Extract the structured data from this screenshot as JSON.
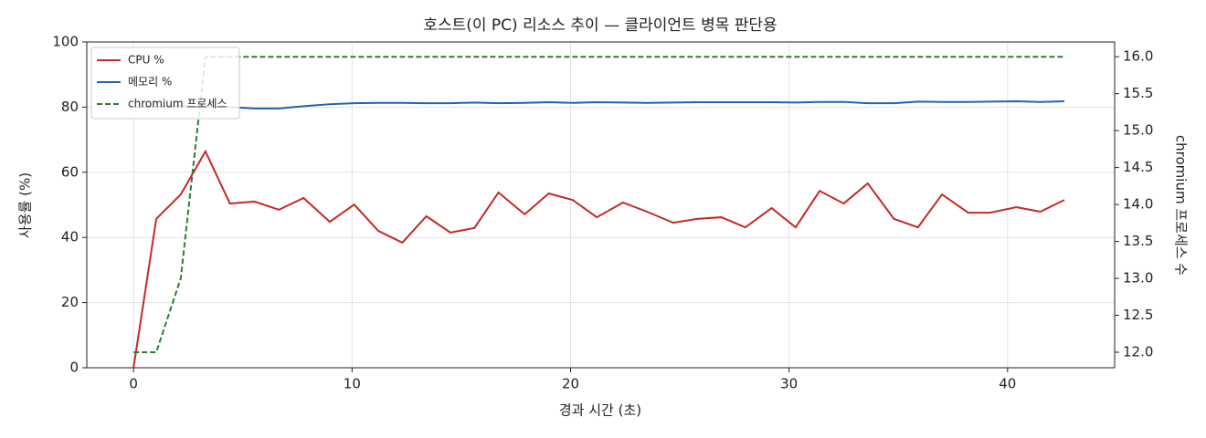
{
  "chart_data": {
    "type": "line",
    "title": "호스트(이 PC) 리소스 추이 — 클라이언트 병목 판단용",
    "x_label": "경과 시간 (초)",
    "y_label": "사용률 (%)",
    "y2_label": "chromium 프로세스 수",
    "x": [
      0,
      1.04,
      2.16,
      3.29,
      4.41,
      5.53,
      6.65,
      7.78,
      8.98,
      10.1,
      11.2,
      12.3,
      13.4,
      14.5,
      15.6,
      16.7,
      17.9,
      19.0,
      20.1,
      21.2,
      22.4,
      23.5,
      24.7,
      25.8,
      26.9,
      28.0,
      29.2,
      30.3,
      31.4,
      32.5,
      33.6,
      34.8,
      35.9,
      37.0,
      38.2,
      39.2,
      40.4,
      41.5,
      42.6
    ],
    "series": [
      {
        "name": "CPU %",
        "color": "#c62828",
        "dash": false,
        "values": [
          0,
          45.7,
          53.2,
          66.4,
          50.4,
          51.0,
          48.5,
          52.1,
          44.8,
          50.1,
          42.0,
          38.4,
          46.5,
          41.5,
          42.9,
          53.8,
          47.1,
          53.5,
          51.5,
          46.2,
          50.7,
          47.9,
          44.5,
          45.7,
          46.2,
          43.1,
          49.0,
          43.1,
          54.3,
          50.4,
          56.6,
          45.7,
          43.1,
          53.2,
          47.6,
          47.6,
          49.3,
          47.9,
          51.5
        ]
      },
      {
        "name": "메모리 %",
        "color": "#1f63b0",
        "dash": false,
        "values": [
          80.0,
          80.1,
          80.2,
          80.1,
          80.0,
          79.6,
          79.6,
          80.3,
          80.9,
          81.2,
          81.3,
          81.3,
          81.2,
          81.2,
          81.4,
          81.2,
          81.3,
          81.5,
          81.3,
          81.5,
          81.4,
          81.3,
          81.4,
          81.5,
          81.5,
          81.5,
          81.5,
          81.4,
          81.6,
          81.6,
          81.2,
          81.2,
          81.7,
          81.6,
          81.6,
          81.7,
          81.8,
          81.6,
          81.8
        ]
      },
      {
        "name": "chromium 프로세스",
        "color": "#2e7d32",
        "dash": true,
        "axis": "y2",
        "values": [
          12,
          12,
          13,
          16,
          16,
          16,
          16,
          16,
          16,
          16,
          16,
          16,
          16,
          16,
          16,
          16,
          16,
          16,
          16,
          16,
          16,
          16,
          16,
          16,
          16,
          16,
          16,
          16,
          16,
          16,
          16,
          16,
          16,
          16,
          16,
          16,
          16,
          16,
          16
        ]
      }
    ],
    "xlim": [
      -2.14,
      44.9
    ],
    "xticks": [
      0,
      10,
      20,
      30,
      40
    ],
    "ylim": [
      0,
      100
    ],
    "yticks": [
      0,
      20,
      40,
      60,
      80,
      100
    ],
    "y2lim": [
      11.79,
      16.2
    ],
    "y2ticks": [
      {
        "value": 12,
        "label": "12.0"
      },
      12.5,
      {
        "value": 13,
        "label": "13.0"
      },
      13.5,
      {
        "value": 14,
        "label": "14.0"
      },
      14.5,
      {
        "value": 15,
        "label": "15.0"
      },
      15.5,
      {
        "value": 16,
        "label": "16.0"
      }
    ],
    "grid": true,
    "legend": "upper left"
  }
}
